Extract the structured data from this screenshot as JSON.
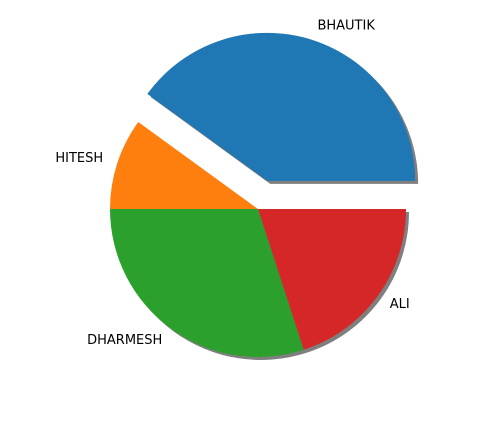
{
  "chart_data": {
    "type": "pie",
    "title": "",
    "categories": [
      "BHAUTIK",
      "HITESH",
      "DHARMESH",
      "ALI"
    ],
    "values": [
      40,
      10,
      30,
      20
    ],
    "colors": [
      "#1f77b4",
      "#ff7f0e",
      "#2ca02c",
      "#d62728"
    ],
    "explode": [
      0.2,
      0,
      0,
      0
    ],
    "shadow": true,
    "start_angle_deg": 0,
    "direction": "counterclockwise"
  }
}
